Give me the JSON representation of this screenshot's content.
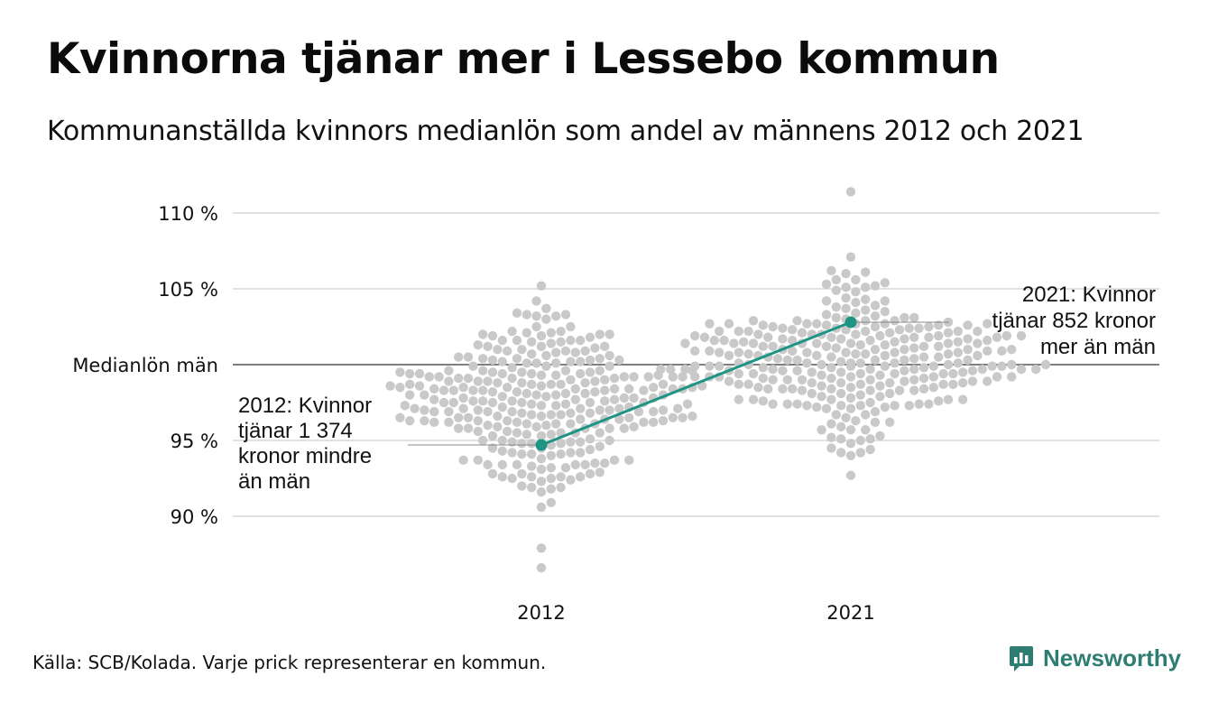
{
  "header": {
    "title": "Kvinnorna tjänar mer i Lessebo kommun",
    "subtitle": "Kommunanställda kvinnors medianlön som andel av männens 2012 och 2021"
  },
  "footer": {
    "source": "Källa: SCB/Kolada. Varje prick representerar en kommun.",
    "brand": "Newsworthy"
  },
  "colors": {
    "highlight": "#1e9485",
    "dots": "#c9c9c9",
    "grid": "#e1e1e1",
    "reference": "#333333",
    "brand": "#2e7d72"
  },
  "chart_data": {
    "type": "scatter",
    "variant": "beeswarm",
    "categories": [
      "2012",
      "2021"
    ],
    "y_ticks": [
      {
        "value": 90,
        "label": "90 %"
      },
      {
        "value": 95,
        "label": "95 %"
      },
      {
        "value": 100,
        "label": "Medianlön män"
      },
      {
        "value": 105,
        "label": "105 %"
      },
      {
        "value": 110,
        "label": "110 %"
      }
    ],
    "ylim": [
      86,
      112
    ],
    "reference_line": 100,
    "grid": true,
    "distributions": [
      {
        "category": "2012",
        "median": 97.3,
        "sd": 2.6,
        "count": 290,
        "min": 86.6,
        "max": 105.2
      },
      {
        "category": "2021",
        "median": 100.3,
        "sd": 2.4,
        "count": 290,
        "min": 92.7,
        "max": 111.4
      }
    ],
    "highlight": {
      "points": [
        {
          "category": "2012",
          "value": 94.7
        },
        {
          "category": "2021",
          "value": 102.8
        }
      ]
    },
    "annotations": [
      {
        "category": "2012",
        "value": 94.7,
        "lines": [
          "2012: Kvinnor",
          "tjänar 1 374",
          "kronor mindre",
          "än män"
        ]
      },
      {
        "category": "2021",
        "value": 102.8,
        "lines": [
          "2021: Kvinnor",
          "tjänar 852 kronor",
          "mer än män"
        ]
      }
    ]
  }
}
